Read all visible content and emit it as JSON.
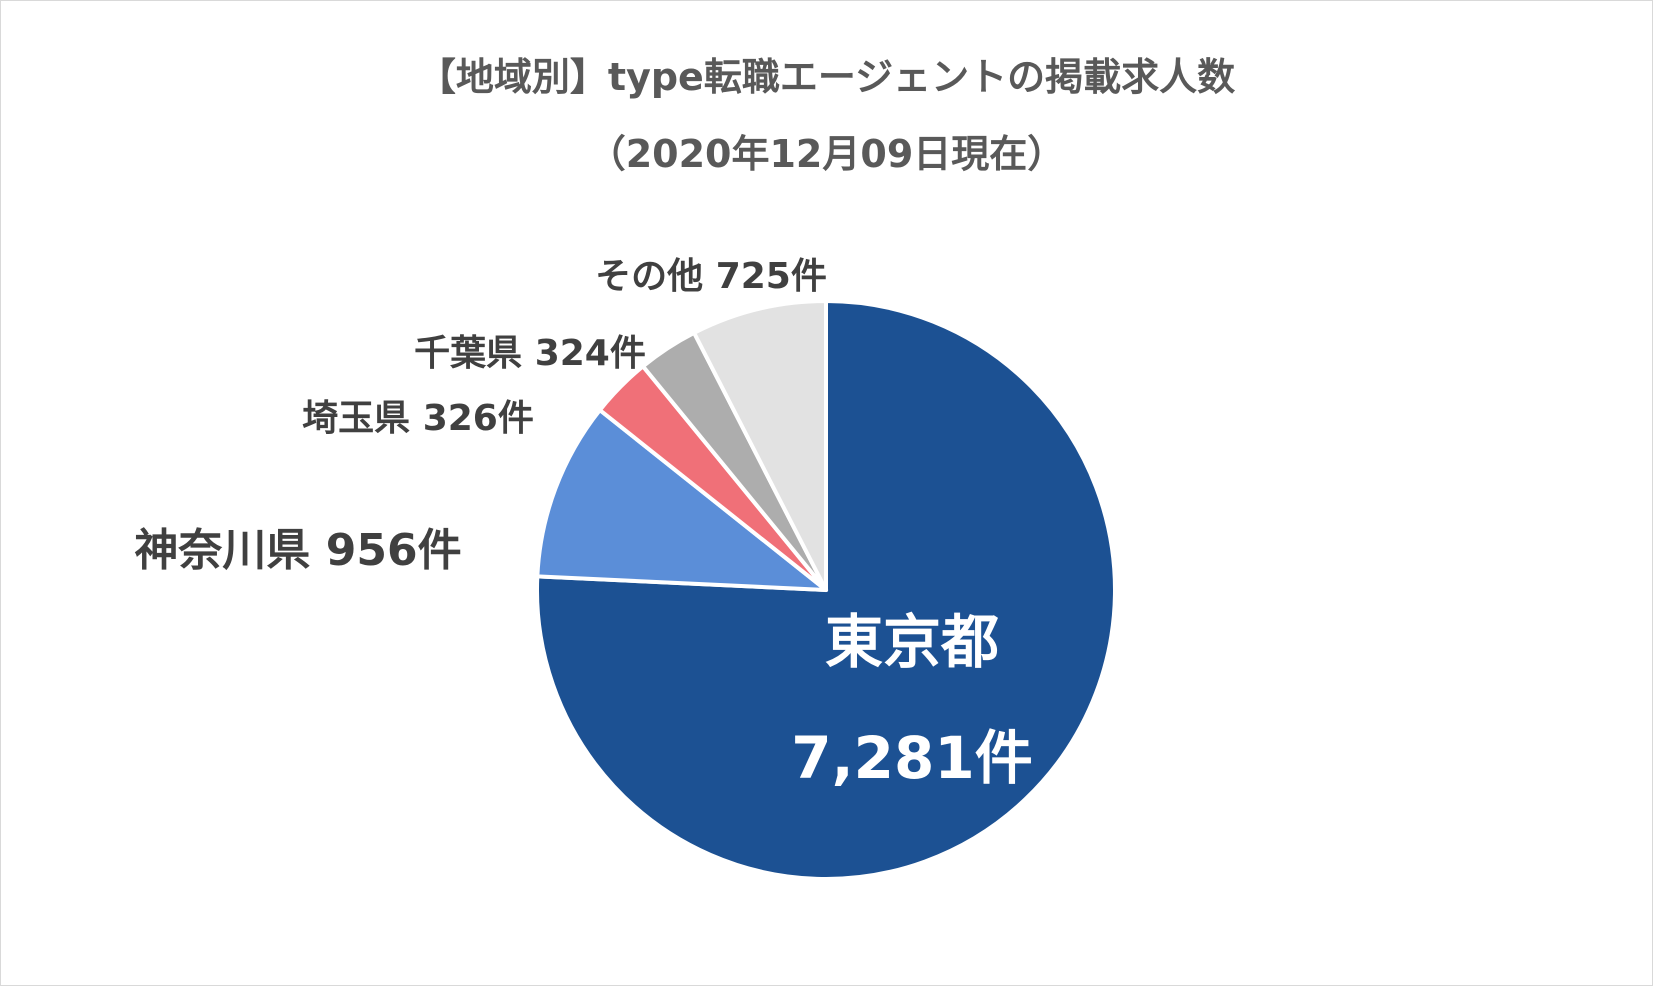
{
  "chart_data": {
    "type": "pie",
    "title": "【地域別】type転職エージェントの掲載求人数",
    "subtitle": "（2020年12月09日現在）",
    "slices": [
      {
        "category": "東京都",
        "value": 7281,
        "label": "7,281件",
        "color": "#1c5193"
      },
      {
        "category": "神奈川県",
        "value": 956,
        "label": "956件",
        "color": "#5b8ed8"
      },
      {
        "category": "埼玉県",
        "value": 326,
        "label": "326件",
        "color": "#f07078"
      },
      {
        "category": "千葉県",
        "value": 324,
        "label": "324件",
        "color": "#adadad"
      },
      {
        "category": "その他",
        "value": 725,
        "label": "725件",
        "color": "#e2e2e2"
      }
    ],
    "start_angle": "12 o'clock",
    "direction": "clockwise",
    "slice_border_color": "#ffffff",
    "legend": "none",
    "grid": false
  }
}
